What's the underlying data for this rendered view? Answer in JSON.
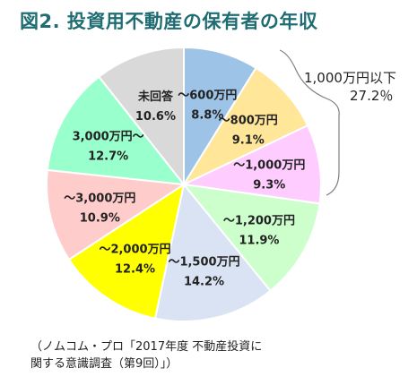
{
  "chart_data": {
    "type": "pie",
    "title": "図2. 投資用不動産の保有者の年収",
    "slices": [
      {
        "label": "～600万円",
        "value": 8.8,
        "value_label": "8.8%",
        "color": "#9dc3e6"
      },
      {
        "label": "～800万円",
        "value": 9.1,
        "value_label": "9.1%",
        "color": "#ffe699"
      },
      {
        "label": "～1,000万円",
        "value": 9.3,
        "value_label": "9.3%",
        "color": "#ffccff"
      },
      {
        "label": "～1,200万円",
        "value": 11.9,
        "value_label": "11.9%",
        "color": "#ccffcc"
      },
      {
        "label": "～1,500万円",
        "value": 14.2,
        "value_label": "14.2%",
        "color": "#dae3f3"
      },
      {
        "label": "～2,000万円",
        "value": 12.4,
        "value_label": "12.4%",
        "color": "#ffff00"
      },
      {
        "label": "～3,000万円",
        "value": 10.9,
        "value_label": "10.9%",
        "color": "#ffcccc"
      },
      {
        "label": "3,000万円～",
        "value": 12.7,
        "value_label": "12.7%",
        "color": "#99ffcc"
      },
      {
        "label": "未回答",
        "value": 10.6,
        "value_label": "10.6%",
        "color": "#d9d9d9"
      }
    ],
    "annotation": {
      "label": "1,000万円以下",
      "value": "27.2％"
    }
  },
  "source": {
    "line1": "（ノムコム・プロ「2017年度 不動産投資に",
    "line2": "関する意識調査（第9回）」）"
  }
}
